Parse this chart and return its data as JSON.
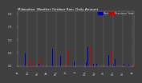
{
  "title": "Milwaukee  Weather Outdoor Rain  Daily Amount",
  "legend_current": "Past",
  "legend_previous": "Previous Year",
  "legend_color_current": "#0000cc",
  "legend_color_previous": "#cc0000",
  "background_color": "#404040",
  "plot_bg_color": "#404040",
  "title_color": "#ffffff",
  "n_days": 365,
  "ylim_max": 1.05,
  "bar_width": 0.35,
  "grid_color": "#888888",
  "tick_color": "#cccccc",
  "title_fontsize": 3.0,
  "legend_fontsize": 2.5,
  "tick_fontsize": 1.8,
  "spine_color": "#888888"
}
